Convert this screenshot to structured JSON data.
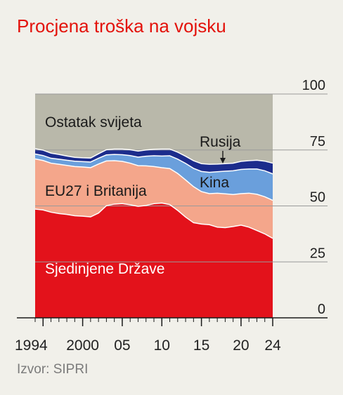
{
  "title": "Procjena troška na vojsku",
  "source": "Izvor: SIPRI",
  "chart_data": {
    "type": "area",
    "stacked": true,
    "x": [
      1994,
      1995,
      1996,
      1997,
      1998,
      1999,
      2000,
      2001,
      2002,
      2003,
      2004,
      2005,
      2006,
      2007,
      2008,
      2009,
      2010,
      2011,
      2012,
      2013,
      2014,
      2015,
      2016,
      2017,
      2018,
      2019,
      2020,
      2021,
      2022,
      2023,
      2024
    ],
    "x_tick_labels": [
      "1994",
      "2000",
      "05",
      "10",
      "15",
      "20",
      "24"
    ],
    "x_tick_values": [
      1995,
      2000,
      2005,
      2010,
      2015,
      2020,
      2024
    ],
    "y_tick_labels": [
      "0",
      "25",
      "50",
      "75",
      "100"
    ],
    "y_tick_values": [
      0,
      25,
      50,
      75,
      100
    ],
    "ylim": [
      0,
      100
    ],
    "colors": {
      "Sjedinjene Države": "#e3121b",
      "EU27 i Britanija": "#f4a68b",
      "Kina": "#6a9fdc",
      "Rusija": "#1c2c8c",
      "Ostatak svijeta": "#b9b8aa",
      "dividers": "#ffffff"
    },
    "series": [
      {
        "name": "Sjedinjene Države",
        "values": [
          48.6,
          48.2,
          47.2,
          46.6,
          46.2,
          45.6,
          45.4,
          45.1,
          46.8,
          50.1,
          50.8,
          51.0,
          50.5,
          49.8,
          50.2,
          51.0,
          51.3,
          50.6,
          48.0,
          45.0,
          42.5,
          41.9,
          41.6,
          40.5,
          40.3,
          40.8,
          41.4,
          40.5,
          39.0,
          37.5,
          35.5
        ]
      },
      {
        "name": "EU27 i Britanija",
        "values": [
          22.4,
          22.1,
          21.9,
          22.0,
          21.9,
          22.0,
          22.0,
          22.0,
          21.9,
          20.0,
          19.4,
          18.9,
          18.6,
          18.2,
          17.7,
          16.6,
          15.8,
          16.1,
          16.5,
          16.6,
          16.1,
          14.5,
          13.9,
          15.2,
          15.1,
          14.3,
          14.1,
          15.2,
          16.2,
          16.6,
          17.0
        ]
      },
      {
        "name": "Kina",
        "values": [
          2.2,
          2.2,
          2.2,
          2.3,
          2.3,
          2.4,
          2.4,
          2.5,
          2.6,
          2.7,
          2.8,
          3.0,
          3.4,
          3.8,
          4.3,
          4.8,
          5.2,
          5.7,
          6.4,
          7.4,
          8.2,
          9.0,
          9.5,
          9.6,
          10.1,
          10.6,
          10.8,
          10.8,
          11.3,
          11.6,
          11.8
        ]
      },
      {
        "name": "Rusija",
        "values": [
          2.4,
          2.4,
          2.3,
          2.1,
          1.9,
          1.7,
          1.7,
          1.8,
          2.0,
          2.3,
          2.4,
          2.5,
          2.6,
          2.7,
          2.8,
          2.9,
          3.1,
          3.0,
          3.1,
          3.2,
          3.4,
          3.5,
          3.6,
          3.4,
          3.4,
          3.4,
          3.6,
          3.7,
          3.9,
          4.3,
          4.8
        ]
      },
      {
        "name": "Ostatak svijeta",
        "values": [
          24.4,
          25.1,
          26.4,
          27.0,
          27.7,
          28.3,
          28.5,
          28.6,
          26.7,
          24.9,
          24.6,
          24.6,
          24.9,
          25.5,
          25.0,
          24.7,
          24.6,
          24.6,
          26.0,
          27.8,
          29.8,
          31.1,
          31.4,
          31.3,
          31.1,
          30.9,
          30.1,
          29.8,
          29.6,
          30.0,
          30.9
        ]
      }
    ],
    "annotations": {
      "ostatak": "Ostatak svijeta",
      "rusija": "Rusija",
      "kina": "Kina",
      "eu": "EU27 i Britanija",
      "sad": "Sjedinjene Države"
    },
    "grid": true,
    "gridlines_at": [
      75,
      50,
      25
    ]
  }
}
